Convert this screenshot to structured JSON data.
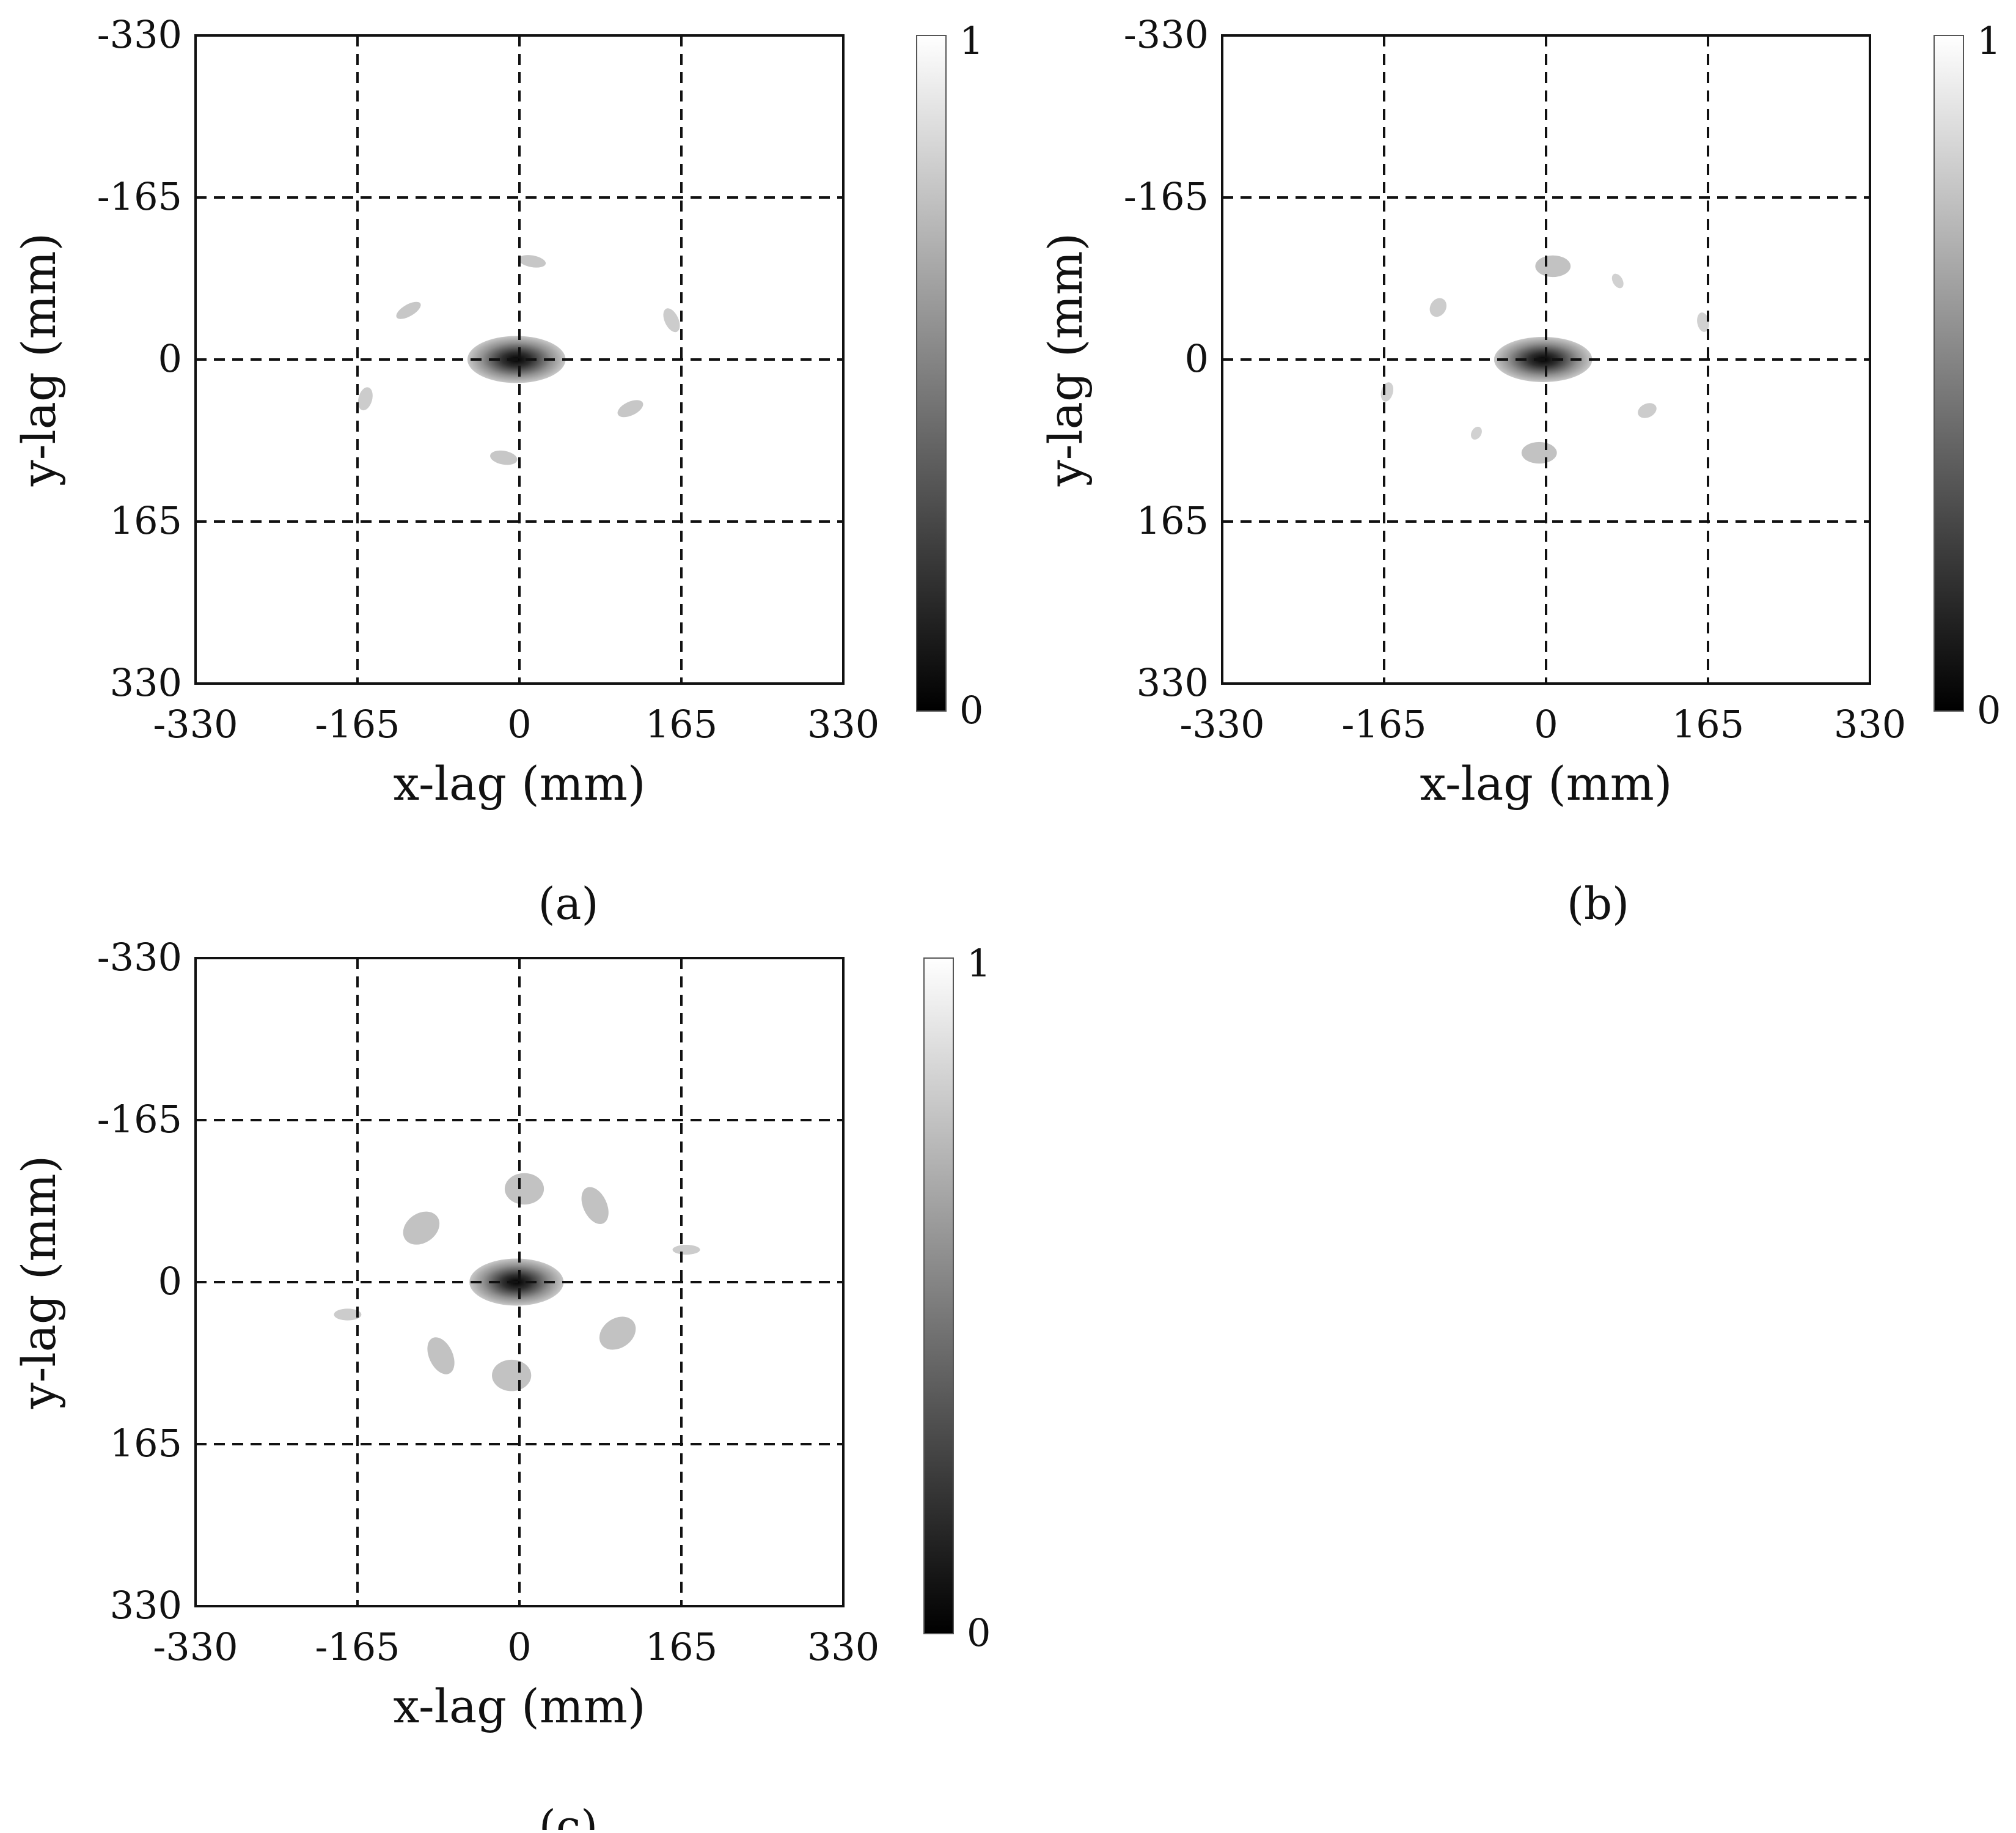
{
  "chart_data": [
    {
      "type": "heatmap",
      "panel_label": "(a)",
      "xlabel": "x-lag (mm)",
      "ylabel": "y-lag (mm)",
      "xlim": [
        -330,
        330
      ],
      "ylim": [
        330,
        -330
      ],
      "x_ticks": [
        "-330",
        "-165",
        "0",
        "165",
        "330"
      ],
      "y_ticks": [
        "-330",
        "-165",
        "0",
        "165",
        "330"
      ],
      "grid": "dashed at ±165 and 0",
      "colorbar": {
        "min_label": "0",
        "max_label": "1",
        "colormap": "gray"
      },
      "central_minimum": {
        "x": -3,
        "y": 0,
        "value": 0,
        "rx": 50,
        "ry": 24
      },
      "secondary_features": [
        {
          "x": 13,
          "y": -100,
          "rx": 14,
          "ry": 6,
          "angle": 10,
          "value": 0.78
        },
        {
          "x": -113,
          "y": -50,
          "rx": 14,
          "ry": 6,
          "angle": -30,
          "value": 0.78
        },
        {
          "x": 155,
          "y": -40,
          "rx": 7,
          "ry": 13,
          "angle": -25,
          "value": 0.8
        },
        {
          "x": -157,
          "y": 40,
          "rx": 7,
          "ry": 12,
          "angle": 15,
          "value": 0.8
        },
        {
          "x": 113,
          "y": 50,
          "rx": 14,
          "ry": 7,
          "angle": -25,
          "value": 0.78
        },
        {
          "x": -16,
          "y": 100,
          "rx": 14,
          "ry": 7,
          "angle": 10,
          "value": 0.78
        }
      ]
    },
    {
      "type": "heatmap",
      "panel_label": "(b)",
      "xlabel": "x-lag (mm)",
      "ylabel": "y-lag (mm)",
      "xlim": [
        -330,
        330
      ],
      "ylim": [
        330,
        -330
      ],
      "x_ticks": [
        "-330",
        "-165",
        "0",
        "165",
        "330"
      ],
      "y_ticks": [
        "-330",
        "-165",
        "0",
        "165",
        "330"
      ],
      "grid": "dashed at ±165 and 0",
      "colorbar": {
        "min_label": "0",
        "max_label": "1",
        "colormap": "gray"
      },
      "central_minimum": {
        "x": -3,
        "y": 0,
        "value": 0,
        "rx": 50,
        "ry": 23
      },
      "secondary_features": [
        {
          "x": 7,
          "y": -95,
          "rx": 18,
          "ry": 11,
          "angle": 0,
          "value": 0.76
        },
        {
          "x": -7,
          "y": 95,
          "rx": 18,
          "ry": 11,
          "angle": 0,
          "value": 0.76
        },
        {
          "x": -110,
          "y": -53,
          "rx": 8,
          "ry": 10,
          "angle": 30,
          "value": 0.8
        },
        {
          "x": 73,
          "y": -80,
          "rx": 5,
          "ry": 8,
          "angle": -30,
          "value": 0.82
        },
        {
          "x": 160,
          "y": -38,
          "rx": 6,
          "ry": 10,
          "angle": -10,
          "value": 0.82
        },
        {
          "x": -162,
          "y": 33,
          "rx": 6,
          "ry": 10,
          "angle": 15,
          "value": 0.82
        },
        {
          "x": 103,
          "y": 52,
          "rx": 10,
          "ry": 7,
          "angle": -25,
          "value": 0.8
        },
        {
          "x": -71,
          "y": 75,
          "rx": 5,
          "ry": 7,
          "angle": 30,
          "value": 0.82
        }
      ]
    },
    {
      "type": "heatmap",
      "panel_label": "(c)",
      "xlabel": "x-lag (mm)",
      "ylabel": "y-lag (mm)",
      "xlim": [
        -330,
        330
      ],
      "ylim": [
        330,
        -330
      ],
      "x_ticks": [
        "-330",
        "-165",
        "0",
        "165",
        "330"
      ],
      "y_ticks": [
        "-330",
        "-165",
        "0",
        "165",
        "330"
      ],
      "grid": "dashed at ±165 and 0",
      "colorbar": {
        "min_label": "0",
        "max_label": "1",
        "colormap": "gray"
      },
      "central_minimum": {
        "x": -3,
        "y": 0,
        "value": 0,
        "rx": 48,
        "ry": 24
      },
      "secondary_features": [
        {
          "x": 5,
          "y": -95,
          "rx": 20,
          "ry": 16,
          "angle": 0,
          "value": 0.76
        },
        {
          "x": -100,
          "y": -55,
          "rx": 20,
          "ry": 15,
          "angle": -35,
          "value": 0.76
        },
        {
          "x": 77,
          "y": -78,
          "rx": 12,
          "ry": 20,
          "angle": -25,
          "value": 0.76
        },
        {
          "x": 170,
          "y": -33,
          "rx": 14,
          "ry": 5,
          "angle": 0,
          "value": 0.8
        },
        {
          "x": -175,
          "y": 33,
          "rx": 14,
          "ry": 6,
          "angle": 0,
          "value": 0.8
        },
        {
          "x": 100,
          "y": 52,
          "rx": 20,
          "ry": 15,
          "angle": -35,
          "value": 0.76
        },
        {
          "x": -80,
          "y": 75,
          "rx": 12,
          "ry": 20,
          "angle": -25,
          "value": 0.76
        },
        {
          "x": -8,
          "y": 95,
          "rx": 20,
          "ry": 16,
          "angle": 0,
          "value": 0.76
        }
      ]
    }
  ]
}
